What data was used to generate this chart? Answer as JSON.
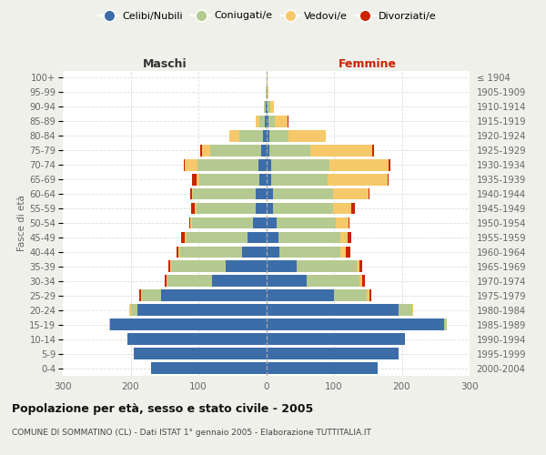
{
  "age_groups": [
    "0-4",
    "5-9",
    "10-14",
    "15-19",
    "20-24",
    "25-29",
    "30-34",
    "35-39",
    "40-44",
    "45-49",
    "50-54",
    "55-59",
    "60-64",
    "65-69",
    "70-74",
    "75-79",
    "80-84",
    "85-89",
    "90-94",
    "95-99",
    "100+"
  ],
  "birth_years": [
    "2000-2004",
    "1995-1999",
    "1990-1994",
    "1985-1989",
    "1980-1984",
    "1975-1979",
    "1970-1974",
    "1965-1969",
    "1960-1964",
    "1955-1959",
    "1950-1954",
    "1945-1949",
    "1940-1944",
    "1935-1939",
    "1930-1934",
    "1925-1929",
    "1920-1924",
    "1915-1919",
    "1910-1914",
    "1905-1909",
    "≤ 1904"
  ],
  "colors": {
    "celibi": "#3d6da8",
    "coniugati": "#b5ca90",
    "vedovi": "#f5c96a",
    "divorziati": "#cc2200"
  },
  "male": {
    "celibi": [
      170,
      195,
      205,
      230,
      190,
      155,
      80,
      60,
      35,
      28,
      20,
      15,
      15,
      10,
      12,
      8,
      5,
      2,
      1,
      0,
      0
    ],
    "coniugati": [
      0,
      0,
      0,
      2,
      10,
      28,
      65,
      80,
      92,
      90,
      90,
      88,
      93,
      88,
      90,
      75,
      35,
      8,
      2,
      1,
      0
    ],
    "vedovi": [
      0,
      0,
      0,
      0,
      2,
      2,
      2,
      2,
      2,
      2,
      2,
      2,
      2,
      5,
      18,
      12,
      14,
      5,
      1,
      0,
      0
    ],
    "divorziati": [
      0,
      0,
      0,
      0,
      0,
      2,
      2,
      2,
      3,
      6,
      2,
      6,
      2,
      6,
      2,
      2,
      0,
      0,
      0,
      0,
      0
    ]
  },
  "female": {
    "celibi": [
      165,
      195,
      205,
      262,
      195,
      100,
      60,
      45,
      20,
      18,
      15,
      10,
      10,
      8,
      8,
      5,
      5,
      3,
      2,
      1,
      1
    ],
    "coniugati": [
      0,
      0,
      0,
      5,
      20,
      48,
      78,
      88,
      90,
      92,
      88,
      88,
      88,
      83,
      85,
      60,
      28,
      10,
      4,
      1,
      0
    ],
    "vedovi": [
      0,
      0,
      0,
      0,
      2,
      5,
      4,
      5,
      8,
      10,
      18,
      28,
      53,
      88,
      88,
      92,
      55,
      18,
      5,
      2,
      1
    ],
    "divorziati": [
      0,
      0,
      0,
      0,
      0,
      2,
      4,
      4,
      6,
      6,
      2,
      5,
      2,
      2,
      2,
      2,
      0,
      2,
      0,
      0,
      0
    ]
  },
  "xlim": 300,
  "title": "Popolazione per età, sesso e stato civile - 2005",
  "subtitle": "COMUNE DI SOMMATINO (CL) - Dati ISTAT 1° gennaio 2005 - Elaborazione TUTTITALIA.IT",
  "ylabel_left": "Fasce di età",
  "legend_labels": [
    "Celibi/Nubili",
    "Coniugati/e",
    "Vedovi/e",
    "Divorziati/e"
  ],
  "maschi_label": "Maschi",
  "femmine_label": "Femmine",
  "maschi_color": "#333333",
  "femmine_color": "#cc2200",
  "background_color": "#f0f0eb",
  "plot_bg_color": "#ffffff",
  "grid_color": "#dddddd",
  "tick_color": "#666666"
}
